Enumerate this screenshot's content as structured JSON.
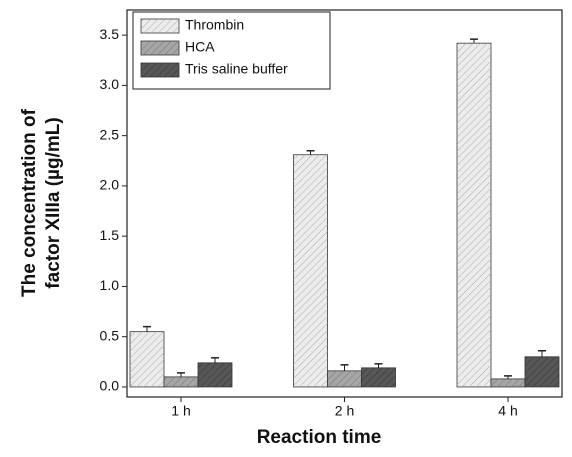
{
  "chart_data": {
    "type": "bar",
    "xlabel": "Reaction time",
    "ylabel": [
      "The concentration of",
      "factor XIIIa (µg/mL)"
    ],
    "categories": [
      "1 h",
      "2 h",
      "4 h"
    ],
    "series": [
      {
        "name": "Thrombin",
        "color": "#ececec",
        "values": [
          0.55,
          2.31,
          3.42
        ],
        "errors": [
          0.05,
          0.04,
          0.04
        ]
      },
      {
        "name": "HCA",
        "color": "#a6a6a6",
        "values": [
          0.1,
          0.16,
          0.08
        ],
        "errors": [
          0.04,
          0.06,
          0.03
        ]
      },
      {
        "name": "Tris saline buffer",
        "color": "#575757",
        "values": [
          0.24,
          0.19,
          0.3
        ],
        "errors": [
          0.05,
          0.04,
          0.06
        ]
      }
    ],
    "ylim": [
      -0.1,
      3.75
    ],
    "yticks": [
      {
        "value": 0,
        "label": "0.0"
      },
      0.5,
      {
        "value": 1,
        "label": "1.0"
      },
      1.5,
      {
        "value": 2,
        "label": "2.0"
      },
      2.5,
      {
        "value": 3,
        "label": "3.0"
      },
      3.5
    ],
    "legend": "upper left"
  }
}
